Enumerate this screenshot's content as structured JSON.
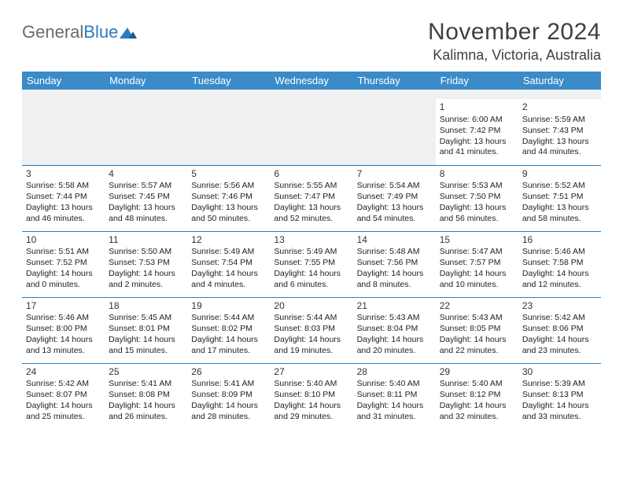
{
  "logo": {
    "text1": "General",
    "text2": "Blue"
  },
  "title": "November 2024",
  "location": "Kalimna, Victoria, Australia",
  "colors": {
    "header_bg": "#3b8bc8",
    "header_text": "#ffffff",
    "rule": "#2b7dc0",
    "spacer_bg": "#eef0f2",
    "text": "#222222",
    "logo_gray": "#6a6a6a",
    "logo_blue": "#2b7dc0"
  },
  "weekdays": [
    "Sunday",
    "Monday",
    "Tuesday",
    "Wednesday",
    "Thursday",
    "Friday",
    "Saturday"
  ],
  "days": [
    {
      "n": 1,
      "sunrise": "6:00 AM",
      "sunset": "7:42 PM",
      "daylight": "13 hours and 41 minutes."
    },
    {
      "n": 2,
      "sunrise": "5:59 AM",
      "sunset": "7:43 PM",
      "daylight": "13 hours and 44 minutes."
    },
    {
      "n": 3,
      "sunrise": "5:58 AM",
      "sunset": "7:44 PM",
      "daylight": "13 hours and 46 minutes."
    },
    {
      "n": 4,
      "sunrise": "5:57 AM",
      "sunset": "7:45 PM",
      "daylight": "13 hours and 48 minutes."
    },
    {
      "n": 5,
      "sunrise": "5:56 AM",
      "sunset": "7:46 PM",
      "daylight": "13 hours and 50 minutes."
    },
    {
      "n": 6,
      "sunrise": "5:55 AM",
      "sunset": "7:47 PM",
      "daylight": "13 hours and 52 minutes."
    },
    {
      "n": 7,
      "sunrise": "5:54 AM",
      "sunset": "7:49 PM",
      "daylight": "13 hours and 54 minutes."
    },
    {
      "n": 8,
      "sunrise": "5:53 AM",
      "sunset": "7:50 PM",
      "daylight": "13 hours and 56 minutes."
    },
    {
      "n": 9,
      "sunrise": "5:52 AM",
      "sunset": "7:51 PM",
      "daylight": "13 hours and 58 minutes."
    },
    {
      "n": 10,
      "sunrise": "5:51 AM",
      "sunset": "7:52 PM",
      "daylight": "14 hours and 0 minutes."
    },
    {
      "n": 11,
      "sunrise": "5:50 AM",
      "sunset": "7:53 PM",
      "daylight": "14 hours and 2 minutes."
    },
    {
      "n": 12,
      "sunrise": "5:49 AM",
      "sunset": "7:54 PM",
      "daylight": "14 hours and 4 minutes."
    },
    {
      "n": 13,
      "sunrise": "5:49 AM",
      "sunset": "7:55 PM",
      "daylight": "14 hours and 6 minutes."
    },
    {
      "n": 14,
      "sunrise": "5:48 AM",
      "sunset": "7:56 PM",
      "daylight": "14 hours and 8 minutes."
    },
    {
      "n": 15,
      "sunrise": "5:47 AM",
      "sunset": "7:57 PM",
      "daylight": "14 hours and 10 minutes."
    },
    {
      "n": 16,
      "sunrise": "5:46 AM",
      "sunset": "7:58 PM",
      "daylight": "14 hours and 12 minutes."
    },
    {
      "n": 17,
      "sunrise": "5:46 AM",
      "sunset": "8:00 PM",
      "daylight": "14 hours and 13 minutes."
    },
    {
      "n": 18,
      "sunrise": "5:45 AM",
      "sunset": "8:01 PM",
      "daylight": "14 hours and 15 minutes."
    },
    {
      "n": 19,
      "sunrise": "5:44 AM",
      "sunset": "8:02 PM",
      "daylight": "14 hours and 17 minutes."
    },
    {
      "n": 20,
      "sunrise": "5:44 AM",
      "sunset": "8:03 PM",
      "daylight": "14 hours and 19 minutes."
    },
    {
      "n": 21,
      "sunrise": "5:43 AM",
      "sunset": "8:04 PM",
      "daylight": "14 hours and 20 minutes."
    },
    {
      "n": 22,
      "sunrise": "5:43 AM",
      "sunset": "8:05 PM",
      "daylight": "14 hours and 22 minutes."
    },
    {
      "n": 23,
      "sunrise": "5:42 AM",
      "sunset": "8:06 PM",
      "daylight": "14 hours and 23 minutes."
    },
    {
      "n": 24,
      "sunrise": "5:42 AM",
      "sunset": "8:07 PM",
      "daylight": "14 hours and 25 minutes."
    },
    {
      "n": 25,
      "sunrise": "5:41 AM",
      "sunset": "8:08 PM",
      "daylight": "14 hours and 26 minutes."
    },
    {
      "n": 26,
      "sunrise": "5:41 AM",
      "sunset": "8:09 PM",
      "daylight": "14 hours and 28 minutes."
    },
    {
      "n": 27,
      "sunrise": "5:40 AM",
      "sunset": "8:10 PM",
      "daylight": "14 hours and 29 minutes."
    },
    {
      "n": 28,
      "sunrise": "5:40 AM",
      "sunset": "8:11 PM",
      "daylight": "14 hours and 31 minutes."
    },
    {
      "n": 29,
      "sunrise": "5:40 AM",
      "sunset": "8:12 PM",
      "daylight": "14 hours and 32 minutes."
    },
    {
      "n": 30,
      "sunrise": "5:39 AM",
      "sunset": "8:13 PM",
      "daylight": "14 hours and 33 minutes."
    }
  ],
  "labels": {
    "sunrise": "Sunrise: ",
    "sunset": "Sunset: ",
    "daylight": "Daylight: "
  },
  "first_weekday_index": 5
}
